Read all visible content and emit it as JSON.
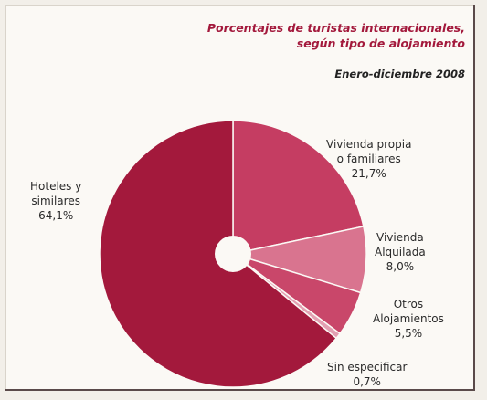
{
  "chart_data": {
    "type": "pie",
    "title": "Porcentajes de turistas internacionales, según tipo de alojamiento",
    "title_lines": [
      "Porcentajes de turistas internacionales,",
      "según tipo de alojamiento"
    ],
    "subtitle": "Enero-diciembre 2008",
    "hole": true,
    "slices": [
      {
        "label_lines": [
          "Vivienda propia",
          "o familiares"
        ],
        "label": "Vivienda propia o familiares",
        "value": 21.7,
        "value_text": "21,7%",
        "color": "#c53d62"
      },
      {
        "label_lines": [
          "Vivienda",
          "Alquilada"
        ],
        "label": "Vivienda Alquilada",
        "value": 8.0,
        "value_text": "8,0%",
        "color": "#d9748f"
      },
      {
        "label_lines": [
          "Otros",
          "Alojamientos"
        ],
        "label": "Otros Alojamientos",
        "value": 5.5,
        "value_text": "5,5%",
        "color": "#c9476a"
      },
      {
        "label_lines": [
          "Sin especificar"
        ],
        "label": "Sin especificar",
        "value": 0.7,
        "value_text": "0,7%",
        "color": "#e3a0b2"
      },
      {
        "label_lines": [
          "Hoteles y",
          "similares"
        ],
        "label": "Hoteles y similares",
        "value": 64.1,
        "value_text": "64,1%",
        "color": "#a3193c"
      }
    ]
  }
}
